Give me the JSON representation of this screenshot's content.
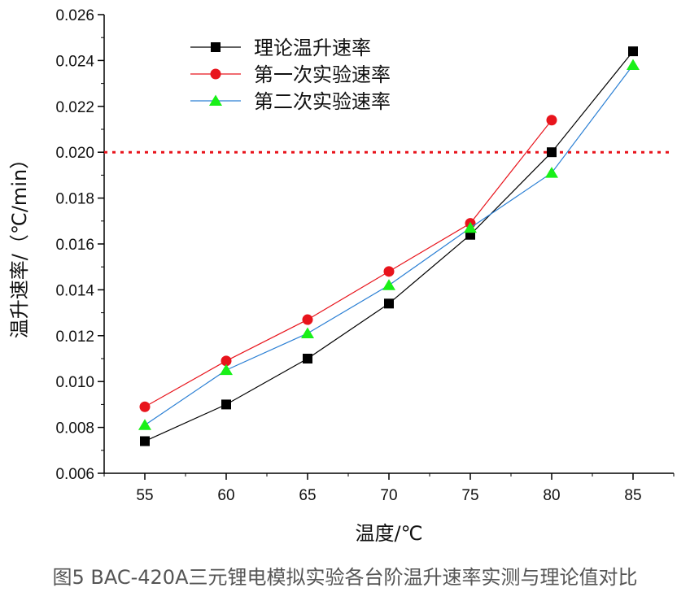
{
  "caption": "图5 BAC-420A三元锂电模拟实验各台阶温升速率实测与理论值对比",
  "chart_data": {
    "type": "line",
    "xlabel": "温度/℃",
    "ylabel": "温升速率/（℃/min）",
    "x": [
      55,
      60,
      65,
      70,
      75,
      80,
      85
    ],
    "xticks": [
      "55",
      "60",
      "65",
      "70",
      "75",
      "80",
      "85"
    ],
    "xlim": [
      52.5,
      87.5
    ],
    "ylim": [
      0.006,
      0.026
    ],
    "yticks": [
      "0.006",
      "0.008",
      "0.010",
      "0.012",
      "0.014",
      "0.016",
      "0.018",
      "0.020",
      "0.022",
      "0.024",
      "0.026"
    ],
    "grid": false,
    "legend_position": "top-left",
    "reference_line": {
      "y": 0.02,
      "color": "#e8141c",
      "style": "dotted"
    },
    "series": [
      {
        "name": "理论温升速率",
        "marker": "square",
        "color": "#000000",
        "values": [
          0.0074,
          0.009,
          0.011,
          0.0134,
          0.0164,
          0.02,
          0.0244
        ]
      },
      {
        "name": "第一次实验速率",
        "marker": "circle",
        "color": "#e8141c",
        "values": [
          0.0089,
          0.0109,
          0.0127,
          0.0148,
          0.0169,
          0.0214,
          null
        ]
      },
      {
        "name": "第二次实验速率",
        "marker": "triangle",
        "color": "#2a7fd4",
        "marker_color": "#19f018",
        "values": [
          0.0081,
          0.0105,
          0.0121,
          0.0142,
          0.0167,
          0.0191,
          0.0238
        ]
      }
    ]
  }
}
